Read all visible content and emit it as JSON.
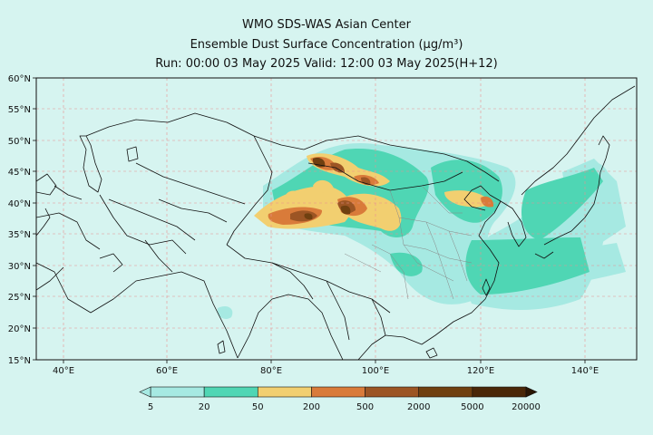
{
  "header": {
    "center_name": "WMO SDS-WAS Asian Center",
    "product": "Ensemble Dust Surface Concentration (μg/m³)",
    "run_valid": "Run: 00:00 03 May 2025     Valid: 12:00 03 May 2025(H+12)"
  },
  "map": {
    "lon_range": [
      35,
      150
    ],
    "lat_range": [
      15,
      60
    ],
    "lon_ticks": [
      "40°E",
      "60°E",
      "80°E",
      "100°E",
      "120°E",
      "140°E"
    ],
    "lat_ticks": [
      "60°N",
      "55°N",
      "50°N",
      "45°N",
      "40°N",
      "35°N",
      "30°N",
      "25°N",
      "20°N",
      "15°N"
    ],
    "background_color": "#d6f4f0"
  },
  "colorbar": {
    "labels": [
      "5",
      "20",
      "50",
      "200",
      "500",
      "2000",
      "5000",
      "20000"
    ],
    "colors": [
      "#a6e9e2",
      "#4fd6b4",
      "#f2cf70",
      "#d97b3a",
      "#9c5524",
      "#704010",
      "#4a2708"
    ]
  }
}
